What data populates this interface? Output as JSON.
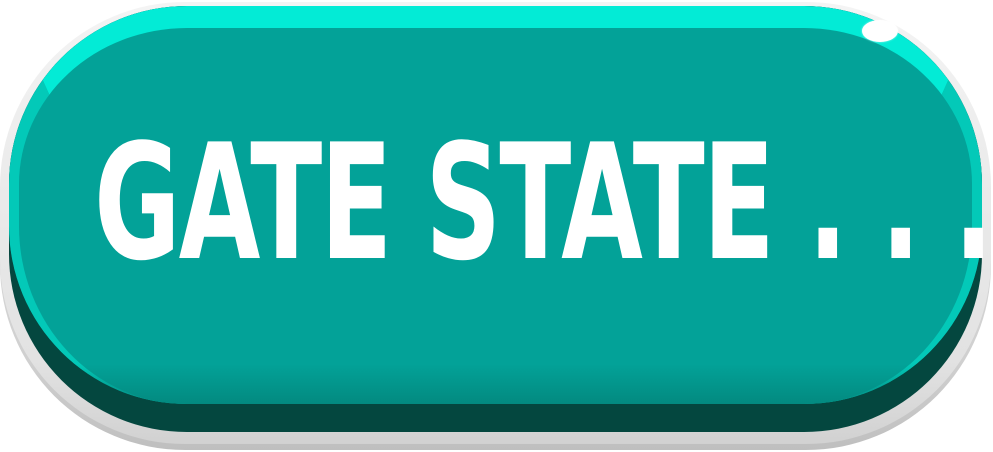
{
  "button": {
    "label": "GATE STATE . . . .",
    "colors": {
      "face": "#03a298",
      "highlight": "#03ebd6",
      "shadow": "#04473f",
      "border": "#e2e2e2",
      "text": "#ffffff"
    }
  }
}
